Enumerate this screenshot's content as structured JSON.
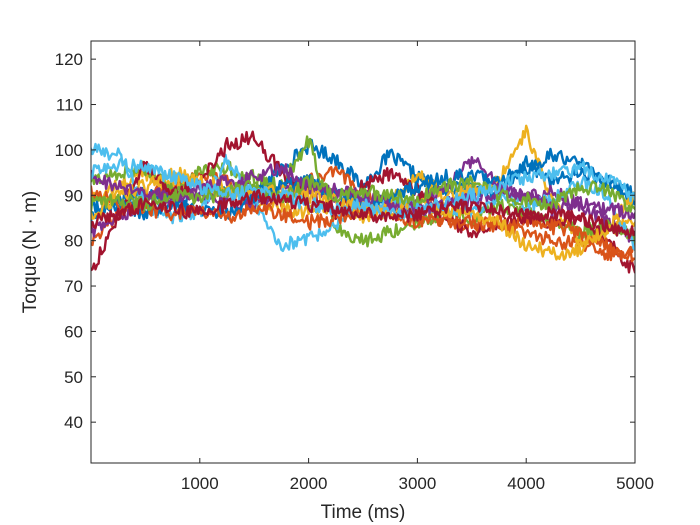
{
  "chart_data": {
    "type": "line",
    "title": "",
    "xlabel": "Time (ms)",
    "ylabel": "Torque (N · m)",
    "xlim": [
      0,
      5000
    ],
    "ylim": [
      31,
      124
    ],
    "x_ticks": [
      1000,
      2000,
      3000,
      4000,
      5000
    ],
    "y_ticks": [
      40,
      50,
      60,
      70,
      80,
      90,
      100,
      110,
      120
    ],
    "grid": false,
    "legend": "none",
    "x": [
      0,
      250,
      500,
      750,
      1000,
      1250,
      1500,
      1750,
      2000,
      2250,
      2500,
      2750,
      3000,
      3250,
      3500,
      3750,
      4000,
      4250,
      4500,
      4750,
      5000
    ],
    "series": [
      {
        "color": "#0072BD",
        "values": [
          85,
          89,
          91,
          89,
          90,
          92,
          90,
          96,
          101,
          98,
          92,
          99,
          94,
          91,
          92,
          90,
          97,
          93,
          95,
          93,
          88
        ]
      },
      {
        "color": "#D95319",
        "values": [
          80,
          86,
          90,
          92,
          95,
          93,
          90,
          89,
          93,
          95,
          91,
          88,
          86,
          84,
          83,
          84,
          82,
          80,
          79,
          77,
          78
        ]
      },
      {
        "color": "#EDB120",
        "values": [
          89,
          92,
          95,
          92,
          90,
          91,
          88,
          87,
          86,
          88,
          85,
          88,
          95,
          90,
          91,
          93,
          104,
          88,
          80,
          82,
          84
        ]
      },
      {
        "color": "#7E2F8E",
        "values": [
          82,
          85,
          89,
          91,
          90,
          89,
          88,
          91,
          92,
          90,
          89,
          87,
          89,
          91,
          98,
          92,
          90,
          91,
          88,
          84,
          80
        ]
      },
      {
        "color": "#77AC30",
        "values": [
          93,
          95,
          96,
          91,
          95,
          96,
          94,
          92,
          102,
          83,
          80,
          82,
          84,
          86,
          85,
          88,
          86,
          84,
          82,
          83,
          81
        ]
      },
      {
        "color": "#4DBEEE",
        "values": [
          100,
          99,
          88,
          85,
          86,
          98,
          89,
          79,
          80,
          84,
          87,
          89,
          88,
          87,
          86,
          90,
          88,
          89,
          93,
          90,
          78
        ]
      },
      {
        "color": "#A2142F",
        "values": [
          73,
          85,
          97,
          90,
          93,
          101,
          103,
          95,
          90,
          86,
          92,
          95,
          91,
          85,
          82,
          83,
          86,
          84,
          85,
          80,
          73
        ]
      },
      {
        "color": "#0072BD",
        "values": [
          87,
          88,
          86,
          88,
          87,
          86,
          89,
          92,
          93,
          90,
          88,
          89,
          92,
          94,
          95,
          93,
          96,
          99,
          97,
          93,
          90
        ]
      },
      {
        "color": "#D95319",
        "values": [
          91,
          88,
          87,
          86,
          87,
          85,
          87,
          86,
          84,
          85,
          87,
          86,
          84,
          85,
          84,
          83,
          84,
          83,
          82,
          79,
          76
        ]
      },
      {
        "color": "#EDB120",
        "values": [
          85,
          90,
          92,
          95,
          93,
          92,
          90,
          91,
          90,
          89,
          87,
          86,
          88,
          87,
          86,
          84,
          79,
          77,
          78,
          83,
          90
        ]
      },
      {
        "color": "#7E2F8E",
        "values": [
          94,
          92,
          90,
          89,
          91,
          93,
          94,
          96,
          92,
          91,
          90,
          88,
          87,
          88,
          89,
          91,
          90,
          87,
          88,
          87,
          86
        ]
      },
      {
        "color": "#77AC30",
        "values": [
          88,
          89,
          88,
          90,
          89,
          91,
          92,
          89,
          93,
          90,
          91,
          90,
          89,
          92,
          93,
          90,
          89,
          88,
          92,
          91,
          87
        ]
      },
      {
        "color": "#4DBEEE",
        "values": [
          95,
          97,
          96,
          94,
          92,
          90,
          91,
          90,
          88,
          87,
          88,
          86,
          87,
          88,
          90,
          92,
          94,
          95,
          96,
          94,
          89
        ]
      },
      {
        "color": "#A2142F",
        "values": [
          84,
          86,
          88,
          87,
          86,
          88,
          90,
          89,
          88,
          87,
          86,
          85,
          86,
          87,
          88,
          87,
          85,
          86,
          85,
          83,
          82
        ]
      }
    ]
  }
}
